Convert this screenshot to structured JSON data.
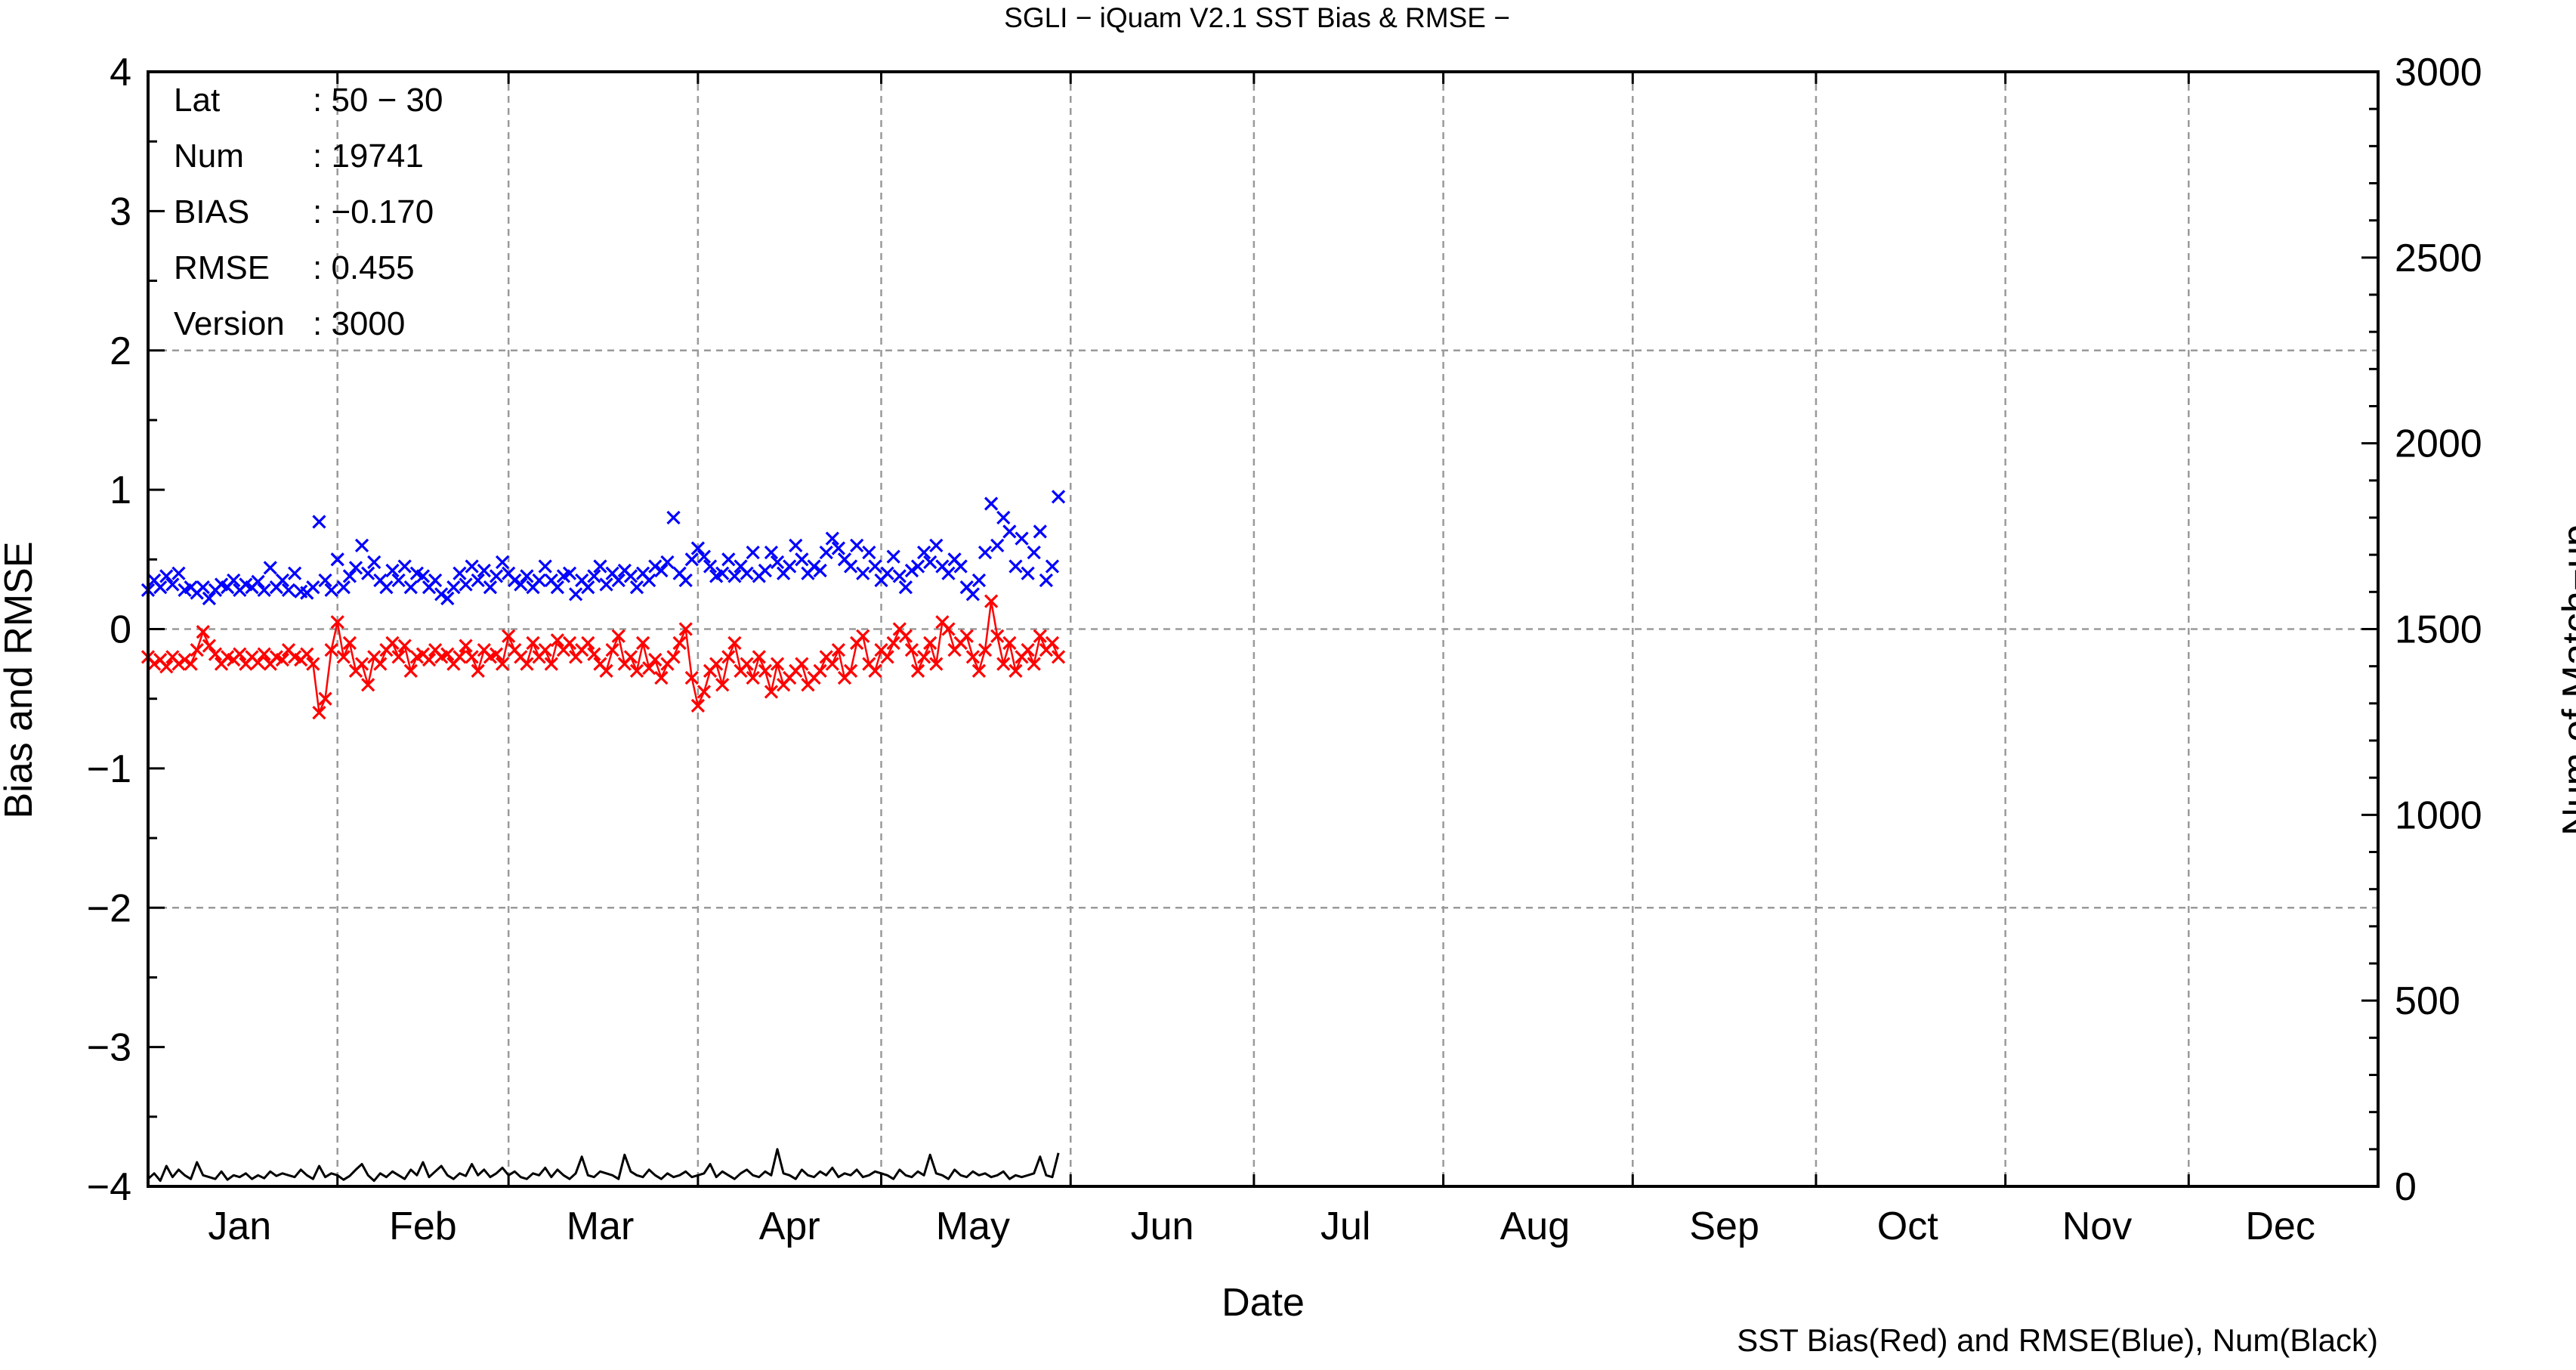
{
  "chart_data": {
    "type": "line",
    "title": "SGLI − iQuam V2.1 SST Bias & RMSE  −",
    "xlabel": "Date",
    "ylabel": "Bias and RMSE",
    "y2label": "Num of Match−up",
    "footnote": "SST Bias(Red) and RMSE(Blue), Num(Black)",
    "ylim": [
      -4,
      4
    ],
    "y2lim": [
      0,
      3000
    ],
    "xlim": [
      1,
      366
    ],
    "x_ticks": [
      {
        "label": "Jan",
        "day": 16
      },
      {
        "label": "Feb",
        "day": 46
      },
      {
        "label": "Mar",
        "day": 75
      },
      {
        "label": "Apr",
        "day": 106
      },
      {
        "label": "May",
        "day": 136
      },
      {
        "label": "Jun",
        "day": 167
      },
      {
        "label": "Jul",
        "day": 197
      },
      {
        "label": "Aug",
        "day": 228
      },
      {
        "label": "Sep",
        "day": 259
      },
      {
        "label": "Oct",
        "day": 289
      },
      {
        "label": "Nov",
        "day": 320
      },
      {
        "label": "Dec",
        "day": 350
      }
    ],
    "y_ticks": [
      "4",
      "3",
      "2",
      "1",
      "0",
      "−1",
      "−2",
      "−3",
      "−4"
    ],
    "y_tick_values": [
      4,
      3,
      2,
      1,
      0,
      -1,
      -2,
      -3,
      -4
    ],
    "y2_ticks": [
      "3000",
      "2500",
      "2000",
      "1500",
      "1000",
      "500",
      "0"
    ],
    "y2_tick_values": [
      3000,
      2500,
      2000,
      1500,
      1000,
      500,
      0
    ],
    "grid": true,
    "info": [
      {
        "key": "Lat",
        "value": ": 50 − 30"
      },
      {
        "key": "Num",
        "value": ": 19741"
      },
      {
        "key": "BIAS",
        "value": ": −0.170"
      },
      {
        "key": "RMSE",
        "value": ": 0.455"
      },
      {
        "key": "Version",
        "value": ": 3000"
      }
    ],
    "colors": {
      "bias": "#ff0000",
      "rmse": "#0000ff",
      "num": "#000000",
      "grid": "#9a9a9a"
    },
    "series": [
      {
        "name": "SST Bias(Red)",
        "color": "#ff0000",
        "axis": "left",
        "marker": "x",
        "connected": true,
        "x": [
          1,
          2,
          3,
          4,
          5,
          6,
          7,
          8,
          9,
          10,
          11,
          12,
          13,
          14,
          15,
          16,
          17,
          18,
          19,
          20,
          21,
          22,
          23,
          24,
          25,
          26,
          27,
          28,
          29,
          30,
          31,
          32,
          33,
          34,
          35,
          36,
          37,
          38,
          39,
          40,
          41,
          42,
          43,
          44,
          45,
          46,
          47,
          48,
          49,
          50,
          51,
          52,
          53,
          54,
          55,
          56,
          57,
          58,
          59,
          60,
          61,
          62,
          63,
          64,
          65,
          66,
          67,
          68,
          69,
          70,
          71,
          72,
          73,
          74,
          75,
          76,
          77,
          78,
          79,
          80,
          81,
          82,
          83,
          84,
          85,
          86,
          87,
          88,
          89,
          90,
          91,
          92,
          93,
          94,
          95,
          96,
          97,
          98,
          99,
          100,
          101,
          102,
          103,
          104,
          105,
          106,
          107,
          108,
          109,
          110,
          111,
          112,
          113,
          114,
          115,
          116,
          117,
          118,
          119,
          120,
          121,
          122,
          123,
          124,
          125,
          126,
          127,
          128,
          129,
          130,
          131,
          132,
          133,
          134,
          135,
          136,
          137,
          138,
          139,
          140,
          141,
          142,
          143,
          144,
          145,
          146,
          147,
          148,
          149,
          150
        ],
        "values": [
          -0.2,
          -0.25,
          -0.22,
          -0.27,
          -0.2,
          -0.25,
          -0.22,
          -0.25,
          -0.15,
          -0.02,
          -0.12,
          -0.18,
          -0.25,
          -0.2,
          -0.22,
          -0.18,
          -0.25,
          -0.2,
          -0.24,
          -0.18,
          -0.25,
          -0.2,
          -0.22,
          -0.15,
          -0.2,
          -0.22,
          -0.18,
          -0.25,
          -0.6,
          -0.5,
          -0.15,
          0.05,
          -0.2,
          -0.1,
          -0.3,
          -0.25,
          -0.4,
          -0.2,
          -0.25,
          -0.15,
          -0.1,
          -0.2,
          -0.12,
          -0.3,
          -0.2,
          -0.18,
          -0.22,
          -0.15,
          -0.2,
          -0.18,
          -0.25,
          -0.2,
          -0.12,
          -0.2,
          -0.3,
          -0.15,
          -0.2,
          -0.18,
          -0.25,
          -0.05,
          -0.15,
          -0.2,
          -0.25,
          -0.1,
          -0.2,
          -0.15,
          -0.25,
          -0.08,
          -0.15,
          -0.1,
          -0.2,
          -0.15,
          -0.1,
          -0.18,
          -0.25,
          -0.3,
          -0.15,
          -0.05,
          -0.25,
          -0.2,
          -0.3,
          -0.1,
          -0.28,
          -0.22,
          -0.35,
          -0.25,
          -0.2,
          -0.1,
          0.0,
          -0.35,
          -0.55,
          -0.45,
          -0.3,
          -0.25,
          -0.4,
          -0.2,
          -0.1,
          -0.3,
          -0.25,
          -0.35,
          -0.2,
          -0.3,
          -0.45,
          -0.25,
          -0.4,
          -0.35,
          -0.3,
          -0.25,
          -0.4,
          -0.35,
          -0.3,
          -0.2,
          -0.25,
          -0.15,
          -0.35,
          -0.3,
          -0.1,
          -0.05,
          -0.25,
          -0.3,
          -0.15,
          -0.2,
          -0.1,
          0.0,
          -0.05,
          -0.15,
          -0.3,
          -0.2,
          -0.1,
          -0.25,
          0.05,
          0.0,
          -0.15,
          -0.1,
          -0.05,
          -0.2,
          -0.3,
          -0.15,
          0.2,
          -0.05,
          -0.25,
          -0.1,
          -0.3,
          -0.2,
          -0.15,
          -0.25,
          -0.05,
          -0.15,
          -0.1,
          -0.2
        ]
      },
      {
        "name": "RMSE(Blue)",
        "color": "#0000ff",
        "axis": "left",
        "marker": "x",
        "connected": false,
        "x": [
          1,
          2,
          3,
          4,
          5,
          6,
          7,
          8,
          9,
          10,
          11,
          12,
          13,
          14,
          15,
          16,
          17,
          18,
          19,
          20,
          21,
          22,
          23,
          24,
          25,
          26,
          27,
          28,
          29,
          30,
          31,
          32,
          33,
          34,
          35,
          36,
          37,
          38,
          39,
          40,
          41,
          42,
          43,
          44,
          45,
          46,
          47,
          48,
          49,
          50,
          51,
          52,
          53,
          54,
          55,
          56,
          57,
          58,
          59,
          60,
          61,
          62,
          63,
          64,
          65,
          66,
          67,
          68,
          69,
          70,
          71,
          72,
          73,
          74,
          75,
          76,
          77,
          78,
          79,
          80,
          81,
          82,
          83,
          84,
          85,
          86,
          87,
          88,
          89,
          90,
          91,
          92,
          93,
          94,
          95,
          96,
          97,
          98,
          99,
          100,
          101,
          102,
          103,
          104,
          105,
          106,
          107,
          108,
          109,
          110,
          111,
          112,
          113,
          114,
          115,
          116,
          117,
          118,
          119,
          120,
          121,
          122,
          123,
          124,
          125,
          126,
          127,
          128,
          129,
          130,
          131,
          132,
          133,
          134,
          135,
          136,
          137,
          138,
          139,
          140,
          141,
          142,
          143,
          144,
          145,
          146,
          147,
          148,
          149,
          150
        ],
        "values": [
          0.28,
          0.35,
          0.3,
          0.38,
          0.32,
          0.4,
          0.28,
          0.3,
          0.26,
          0.3,
          0.22,
          0.28,
          0.32,
          0.3,
          0.35,
          0.28,
          0.32,
          0.3,
          0.34,
          0.28,
          0.44,
          0.3,
          0.35,
          0.28,
          0.4,
          0.27,
          0.26,
          0.3,
          0.77,
          0.35,
          0.28,
          0.5,
          0.3,
          0.38,
          0.44,
          0.6,
          0.4,
          0.48,
          0.35,
          0.3,
          0.42,
          0.35,
          0.45,
          0.3,
          0.4,
          0.38,
          0.3,
          0.35,
          0.25,
          0.22,
          0.3,
          0.4,
          0.32,
          0.45,
          0.35,
          0.42,
          0.3,
          0.38,
          0.48,
          0.4,
          0.35,
          0.32,
          0.38,
          0.3,
          0.35,
          0.45,
          0.35,
          0.3,
          0.38,
          0.4,
          0.25,
          0.35,
          0.3,
          0.38,
          0.45,
          0.32,
          0.4,
          0.35,
          0.42,
          0.38,
          0.3,
          0.4,
          0.35,
          0.45,
          0.42,
          0.48,
          0.8,
          0.4,
          0.35,
          0.5,
          0.58,
          0.52,
          0.45,
          0.38,
          0.4,
          0.5,
          0.38,
          0.45,
          0.4,
          0.55,
          0.38,
          0.42,
          0.55,
          0.48,
          0.4,
          0.45,
          0.6,
          0.5,
          0.4,
          0.45,
          0.42,
          0.55,
          0.65,
          0.58,
          0.5,
          0.45,
          0.6,
          0.4,
          0.55,
          0.45,
          0.35,
          0.4,
          0.52,
          0.38,
          0.3,
          0.42,
          0.45,
          0.55,
          0.48,
          0.6,
          0.45,
          0.4,
          0.5,
          0.45,
          0.3,
          0.25,
          0.35,
          0.55,
          0.9,
          0.6,
          0.8,
          0.7,
          0.45,
          0.65,
          0.4,
          0.55,
          0.7,
          0.35,
          0.45,
          0.95
        ]
      },
      {
        "name": "Num(Black)",
        "color": "#000000",
        "axis": "right",
        "marker": "none",
        "connected": true,
        "x": [
          1,
          2,
          3,
          4,
          5,
          6,
          7,
          8,
          9,
          10,
          11,
          12,
          13,
          14,
          15,
          16,
          17,
          18,
          19,
          20,
          21,
          22,
          23,
          24,
          25,
          26,
          27,
          28,
          29,
          30,
          31,
          32,
          33,
          34,
          35,
          36,
          37,
          38,
          39,
          40,
          41,
          42,
          43,
          44,
          45,
          46,
          47,
          48,
          49,
          50,
          51,
          52,
          53,
          54,
          55,
          56,
          57,
          58,
          59,
          60,
          61,
          62,
          63,
          64,
          65,
          66,
          67,
          68,
          69,
          70,
          71,
          72,
          73,
          74,
          75,
          76,
          77,
          78,
          79,
          80,
          81,
          82,
          83,
          84,
          85,
          86,
          87,
          88,
          89,
          90,
          91,
          92,
          93,
          94,
          95,
          96,
          97,
          98,
          99,
          100,
          101,
          102,
          103,
          104,
          105,
          106,
          107,
          108,
          109,
          110,
          111,
          112,
          113,
          114,
          115,
          116,
          117,
          118,
          119,
          120,
          121,
          122,
          123,
          124,
          125,
          126,
          127,
          128,
          129,
          130,
          131,
          132,
          133,
          134,
          135,
          136,
          137,
          138,
          139,
          140,
          141,
          142,
          143,
          144,
          145,
          146,
          147,
          148,
          149,
          150
        ],
        "values": [
          20,
          35,
          15,
          55,
          25,
          45,
          30,
          20,
          65,
          30,
          25,
          20,
          40,
          18,
          30,
          25,
          35,
          20,
          30,
          22,
          40,
          28,
          35,
          30,
          25,
          45,
          30,
          20,
          55,
          25,
          35,
          30,
          18,
          28,
          45,
          60,
          30,
          15,
          35,
          25,
          40,
          30,
          20,
          45,
          30,
          65,
          25,
          40,
          55,
          30,
          20,
          35,
          28,
          60,
          30,
          45,
          25,
          35,
          50,
          30,
          40,
          25,
          20,
          35,
          30,
          50,
          25,
          45,
          30,
          20,
          35,
          80,
          30,
          25,
          40,
          35,
          30,
          20,
          85,
          40,
          30,
          25,
          45,
          30,
          20,
          35,
          25,
          30,
          40,
          25,
          30,
          35,
          60,
          25,
          40,
          30,
          20,
          35,
          45,
          30,
          25,
          40,
          30,
          100,
          35,
          30,
          20,
          45,
          30,
          25,
          40,
          30,
          50,
          25,
          35,
          30,
          45,
          25,
          30,
          40,
          35,
          30,
          20,
          45,
          30,
          25,
          40,
          30,
          85,
          35,
          30,
          20,
          45,
          30,
          25,
          40,
          30,
          35,
          25,
          30,
          40,
          20,
          30,
          25,
          30,
          35,
          80,
          30,
          25,
          90
        ]
      }
    ]
  }
}
